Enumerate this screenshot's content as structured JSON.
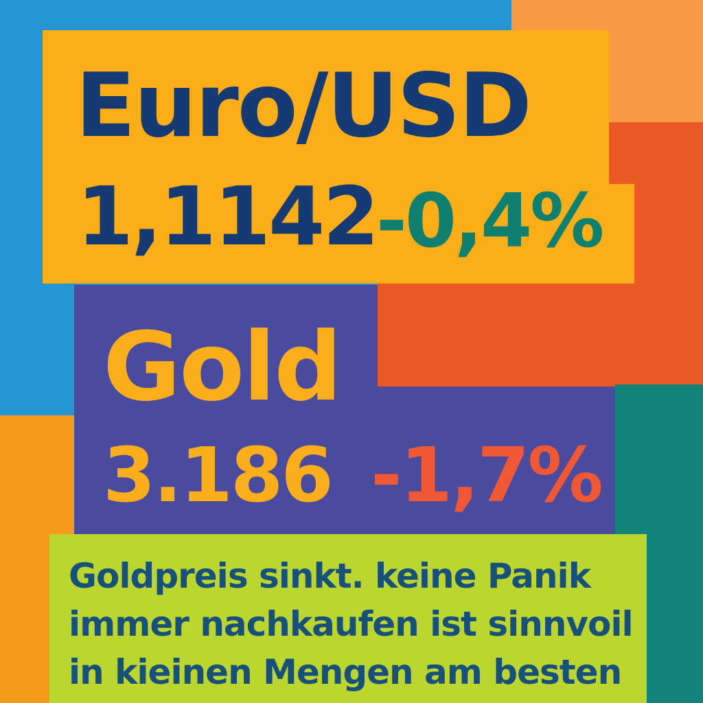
{
  "colors": {
    "blue_bg": "#2596D4",
    "peach_bg": "#F99A42",
    "orange_red": "#EB5A26",
    "teal": "#12847A",
    "orange_bottom": "#F69A1E",
    "yellow_box": "#FBAE18",
    "purple_box": "#4A4B9E",
    "lime_box": "#BCD630",
    "navy_text": "#163A73",
    "teal_text": "#0F806F",
    "gold_text": "#FAAE1C",
    "red_text": "#F05735",
    "caption_text": "#18507C"
  },
  "eur": {
    "label": "Euro/USD",
    "value": "1,1142",
    "change": "-0,4%"
  },
  "gold": {
    "label": "Gold",
    "value": "3.186",
    "change": "-1,7%"
  },
  "caption": {
    "lines": [
      "Goldpreis sinkt. keine Panik",
      "immer nachkaufen ist sinnvoil",
      "in kieinen Mengen am besten"
    ]
  }
}
